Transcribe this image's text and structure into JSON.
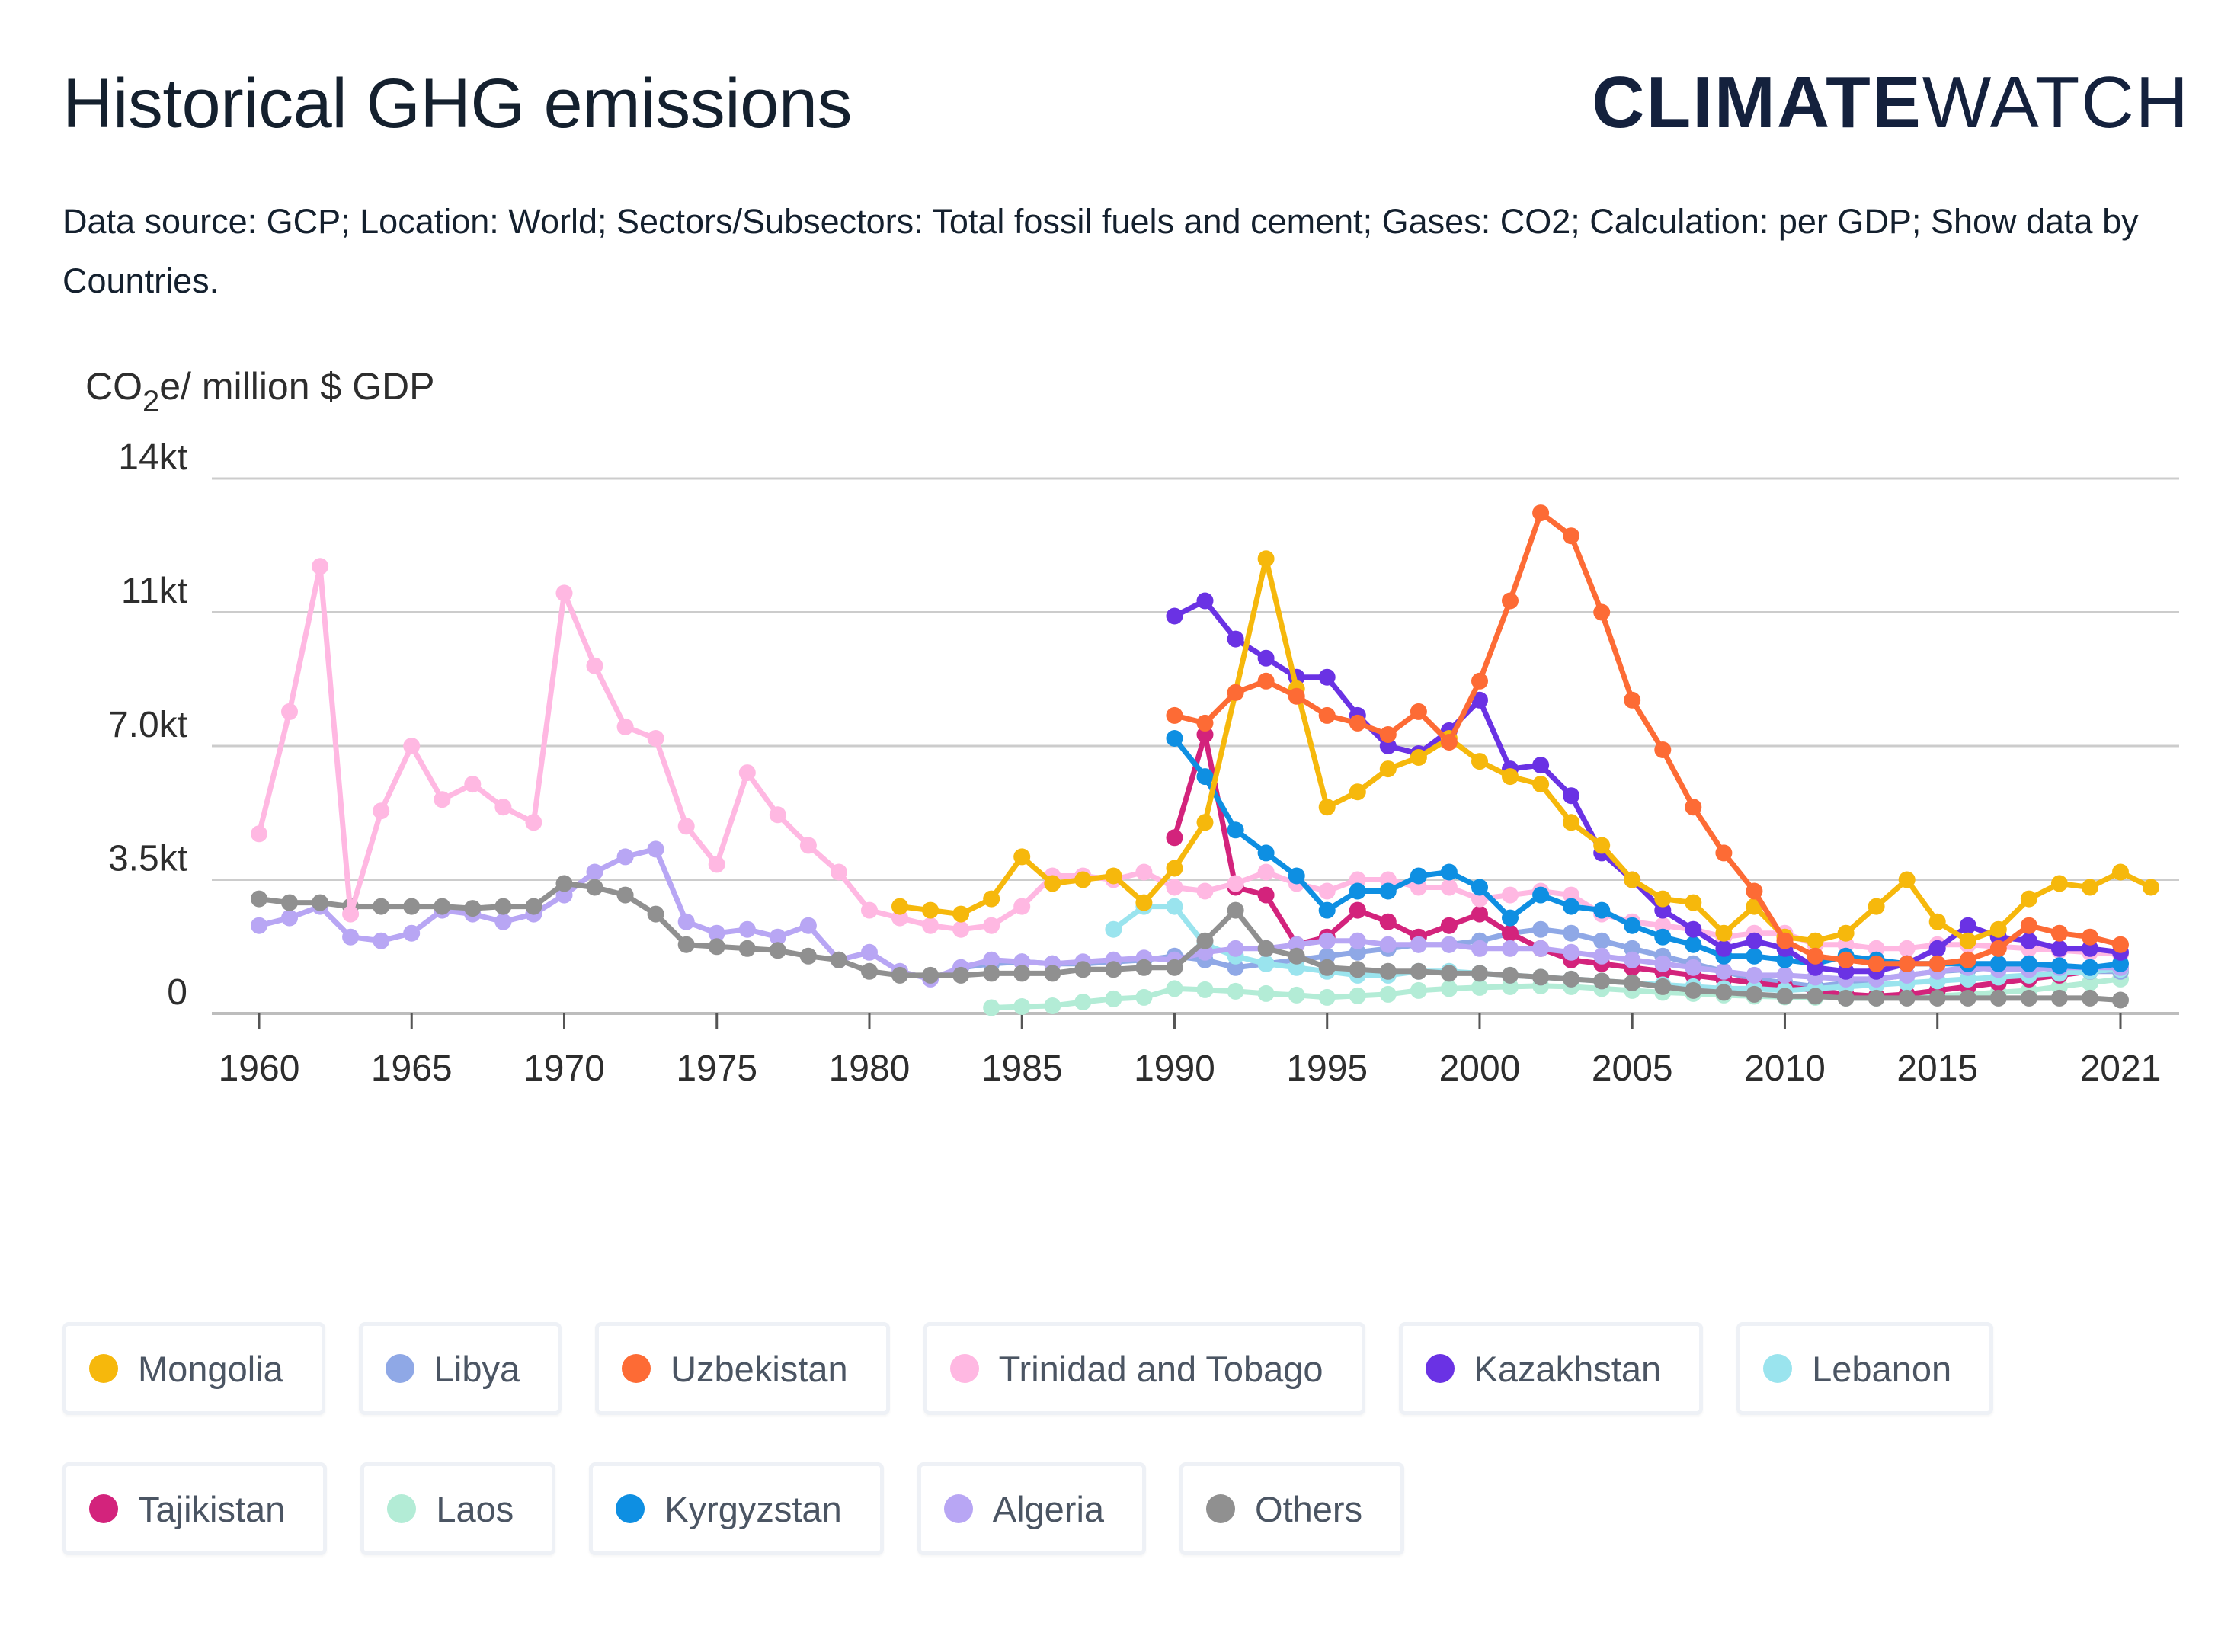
{
  "header": {
    "title": "Historical GHG emissions",
    "brand_bold": "CLIMATE",
    "brand_light": "WATCH",
    "subtitle": "Data source: GCP; Location: World; Sectors/Subsectors: Total fossil fuels and cement; Gases: CO2; Calculation: per GDP; Show data by Countries."
  },
  "chart_data": {
    "type": "line",
    "ylabel_prefix": "CO",
    "ylabel_sub": "2",
    "ylabel_suffix": "e/ million $ GDP",
    "ylim": [
      0,
      14000
    ],
    "yticks": [
      {
        "value": 0,
        "label": "0"
      },
      {
        "value": 3500,
        "label": "3.5kt"
      },
      {
        "value": 7000,
        "label": "7.0kt"
      },
      {
        "value": 10500,
        "label": "11kt"
      },
      {
        "value": 14000,
        "label": "14kt"
      }
    ],
    "xlim": [
      1960,
      2021
    ],
    "xticks": [
      1960,
      1965,
      1970,
      1975,
      1980,
      1985,
      1990,
      1995,
      2000,
      2005,
      2010,
      2015,
      2021
    ],
    "grid": true,
    "legend_position": "bottom",
    "series": [
      {
        "name": "Laos",
        "color": "#b3ecd6",
        "start": 1984,
        "values": [
          150,
          180,
          200,
          300,
          380,
          420,
          650,
          620,
          580,
          520,
          480,
          420,
          460,
          500,
          600,
          650,
          680,
          700,
          720,
          700,
          650,
          600,
          550,
          520,
          480,
          450,
          430,
          420,
          400,
          400,
          420,
          450,
          500,
          550,
          600,
          700,
          800,
          900
        ]
      },
      {
        "name": "Libya",
        "color": "#8fa8e6",
        "start": 1983,
        "values": [
          1200,
          1300,
          1350,
          1300,
          1300,
          1350,
          1400,
          1500,
          1400,
          1200,
          1300,
          1400,
          1500,
          1600,
          1700,
          1800,
          1800,
          1900,
          2100,
          2200,
          2100,
          1900,
          1700,
          1500,
          1300,
          1100,
          900,
          800,
          700,
          800,
          900,
          1000,
          1100,
          1150,
          1200,
          1200,
          1150,
          1100,
          1100
        ]
      },
      {
        "name": "Tajikistan",
        "color": "#d3237c",
        "start": 1990,
        "values": [
          4600,
          7300,
          3300,
          3100,
          1800,
          2000,
          2700,
          2400,
          2000,
          2300,
          2600,
          2100,
          1700,
          1400,
          1300,
          1200,
          1100,
          1000,
          900,
          800,
          700,
          600,
          500,
          450,
          500,
          600,
          700,
          800,
          900,
          1000,
          1100,
          1150
        ]
      },
      {
        "name": "Lebanon",
        "color": "#9ae4ee",
        "start": 1988,
        "values": [
          2200,
          2800,
          2800,
          1800,
          1500,
          1300,
          1200,
          1100,
          1000,
          1000,
          1100,
          1100,
          1050,
          1000,
          950,
          900,
          850,
          800,
          750,
          700,
          650,
          650,
          600,
          650,
          700,
          750,
          800,
          850,
          900,
          950,
          1000,
          1050,
          1100,
          1150
        ]
      },
      {
        "name": "Algeria",
        "color": "#b8a6f4",
        "start": 1960,
        "values": [
          2300,
          2500,
          2800,
          2000,
          1900,
          2100,
          2700,
          2600,
          2400,
          2600,
          3100,
          3700,
          4100,
          4300,
          2400,
          2100,
          2200,
          2000,
          2300,
          1400,
          1600,
          1100,
          900,
          1200,
          1400,
          1350,
          1300,
          1350,
          1400,
          1450,
          1400,
          1600,
          1700,
          1700,
          1800,
          1900,
          1900,
          1800,
          1800,
          1800,
          1700,
          1700,
          1700,
          1600,
          1500,
          1400,
          1300,
          1200,
          1100,
          1000,
          1000,
          950,
          900,
          900,
          1000,
          1100,
          1200,
          1150,
          1150,
          1200,
          1200,
          1200
        ]
      },
      {
        "name": "Others",
        "color": "#909090",
        "start": 1960,
        "values": [
          3000,
          2900,
          2900,
          2800,
          2800,
          2800,
          2800,
          2750,
          2800,
          2800,
          3400,
          3300,
          3100,
          2600,
          1800,
          1750,
          1700,
          1650,
          1500,
          1400,
          1100,
          1000,
          1000,
          1000,
          1050,
          1050,
          1050,
          1150,
          1150,
          1200,
          1200,
          1900,
          2700,
          1700,
          1500,
          1200,
          1150,
          1100,
          1100,
          1050,
          1050,
          1000,
          950,
          900,
          850,
          800,
          700,
          600,
          550,
          500,
          450,
          450,
          400,
          400,
          400,
          400,
          400,
          400,
          400,
          400,
          400,
          350
        ]
      },
      {
        "name": "Trinidad and Tobago",
        "color": "#ffb8e2",
        "start": 1960,
        "values": [
          4700,
          7900,
          11700,
          2600,
          5300,
          7000,
          5600,
          6000,
          5400,
          5000,
          11000,
          9100,
          7500,
          7200,
          4900,
          3900,
          6300,
          5200,
          4400,
          3700,
          2700,
          2500,
          2300,
          2200,
          2300,
          2800,
          3600,
          3600,
          3500,
          3700,
          3300,
          3200,
          3400,
          3700,
          3400,
          3200,
          3500,
          3500,
          3300,
          3300,
          3000,
          3100,
          3200,
          3100,
          2600,
          2400,
          2300,
          2200,
          2000,
          2100,
          2100,
          1800,
          1800,
          1700,
          1700,
          1800,
          1800,
          1750,
          1700,
          1650,
          1600,
          1550
        ]
      },
      {
        "name": "Kyrgyzstan",
        "color": "#0e8fe2",
        "start": 1990,
        "values": [
          7200,
          6200,
          4800,
          4200,
          3600,
          2700,
          3200,
          3200,
          3600,
          3700,
          3300,
          2500,
          3100,
          2800,
          2700,
          2300,
          2000,
          1800,
          1500,
          1500,
          1400,
          1300,
          1500,
          1400,
          1300,
          1300,
          1300,
          1300,
          1300,
          1250,
          1200,
          1300
        ]
      },
      {
        "name": "Kazakhstan",
        "color": "#6a32e4",
        "start": 1990,
        "values": [
          10400,
          10800,
          9800,
          9300,
          8800,
          8800,
          7800,
          7000,
          6800,
          7400,
          8200,
          6400,
          6500,
          5700,
          4200,
          3500,
          2700,
          2200,
          1700,
          1900,
          1700,
          1200,
          1100,
          1100,
          1300,
          1700,
          2300,
          2000,
          1900,
          1700,
          1700,
          1600
        ]
      },
      {
        "name": "Mongolia",
        "color": "#f6b80c",
        "start": 1981,
        "values": [
          2800,
          2700,
          2600,
          3000,
          4100,
          3400,
          3500,
          3600,
          2900,
          3800,
          5000,
          8400,
          11900,
          8500,
          5400,
          5800,
          6400,
          6700,
          7200,
          6600,
          6200,
          6000,
          5000,
          4400,
          3500,
          3000,
          2900,
          2100,
          2800,
          2000,
          1900,
          2100,
          2800,
          3500,
          2400,
          1900,
          2200,
          3000,
          3400,
          3300,
          3700,
          3300
        ]
      },
      {
        "name": "Uzbekistan",
        "color": "#fd6b35",
        "start": 1990,
        "values": [
          7800,
          7600,
          8400,
          8700,
          8300,
          7800,
          7600,
          7300,
          7900,
          7100,
          8700,
          10800,
          13100,
          12500,
          10500,
          8200,
          6900,
          5400,
          4200,
          3200,
          1900,
          1500,
          1400,
          1300,
          1300,
          1300,
          1400,
          1700,
          2300,
          2100,
          2000,
          1800
        ]
      }
    ]
  },
  "legend": {
    "row1": [
      {
        "label": "Mongolia",
        "color": "#f6b80c"
      },
      {
        "label": "Libya",
        "color": "#8fa8e6"
      },
      {
        "label": "Uzbekistan",
        "color": "#fd6b35"
      },
      {
        "label": "Trinidad and Tobago",
        "color": "#ffb8e2"
      },
      {
        "label": "Kazakhstan",
        "color": "#6a32e4"
      },
      {
        "label": "Lebanon",
        "color": "#9ae4ee"
      }
    ],
    "row2": [
      {
        "label": "Tajikistan",
        "color": "#d3237c"
      },
      {
        "label": "Laos",
        "color": "#b3ecd6"
      },
      {
        "label": "Kyrgyzstan",
        "color": "#0e8fe2"
      },
      {
        "label": "Algeria",
        "color": "#b8a6f4"
      },
      {
        "label": "Others",
        "color": "#909090"
      }
    ]
  }
}
